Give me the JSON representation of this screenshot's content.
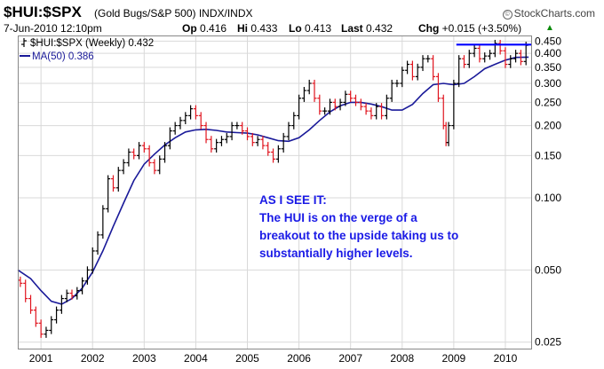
{
  "header": {
    "symbol": "$HUI:$SPX",
    "description": "(Gold Bugs/S&P 500) INDX/INDX",
    "brand": "StockCharts.com",
    "brand_icon": "copyright-icon",
    "date": "7-Jun-2010 12:10pm",
    "open_label": "Op",
    "open_value": "0.416",
    "high_label": "Hi",
    "high_value": "0.433",
    "low_label": "Lo",
    "low_value": "0.413",
    "last_label": "Last",
    "last_value": "0.432",
    "change_label": "Chg",
    "change_value": "+0.015 (+3.50%)",
    "change_icon": "up-arrow-icon"
  },
  "legend": {
    "series_label": "$HUI:$SPX (Weekly) 0.432",
    "series_icon": "ohlc-bar-icon",
    "ma_label": "MA(50) 0.386"
  },
  "annotation": {
    "lines": [
      "AS I SEE IT:",
      "The HUI is on the verge of a",
      "breakout to the upside taking us to",
      "substantially higher levels."
    ]
  },
  "colors": {
    "up_bar": "#000000",
    "down_bar": "#e0141e",
    "ma_line": "#1a1a99",
    "resistance_line": "#0000ff",
    "grid": "#d9d9d9",
    "annotation": "#1a1ae6"
  },
  "chart_data": {
    "type": "line",
    "scale": "log",
    "grid": true,
    "legend_position": "top-left",
    "y_ticks": [
      "0.025",
      "0.050",
      "0.100",
      "0.150",
      "0.200",
      "0.250",
      "0.300",
      "0.350",
      "0.400",
      "0.450"
    ],
    "y_tick_values": [
      0.025,
      0.05,
      0.1,
      0.15,
      0.2,
      0.25,
      0.3,
      0.35,
      0.4,
      0.45
    ],
    "ylim": [
      0.0235,
      0.475
    ],
    "x_ticks": [
      "2001",
      "2002",
      "2003",
      "2004",
      "2005",
      "2006",
      "2007",
      "2008",
      "2009",
      "2010"
    ],
    "x_tick_values": [
      2001,
      2002,
      2003,
      2004,
      2005,
      2006,
      2007,
      2008,
      2009,
      2010
    ],
    "xlim": [
      2000.55,
      2010.5
    ],
    "series": [
      {
        "name": "$HUI:$SPX",
        "style": "ohlc-bars",
        "x": [
          2000.6,
          2000.7,
          2000.8,
          2000.9,
          2001.0,
          2001.1,
          2001.2,
          2001.3,
          2001.4,
          2001.5,
          2001.6,
          2001.7,
          2001.8,
          2001.9,
          2002.0,
          2002.1,
          2002.2,
          2002.3,
          2002.4,
          2002.5,
          2002.6,
          2002.7,
          2002.8,
          2002.9,
          2003.0,
          2003.1,
          2003.2,
          2003.3,
          2003.4,
          2003.5,
          2003.6,
          2003.7,
          2003.8,
          2003.9,
          2004.0,
          2004.1,
          2004.2,
          2004.3,
          2004.4,
          2004.5,
          2004.6,
          2004.7,
          2004.8,
          2004.9,
          2005.0,
          2005.1,
          2005.2,
          2005.3,
          2005.4,
          2005.5,
          2005.6,
          2005.7,
          2005.8,
          2005.9,
          2006.0,
          2006.1,
          2006.2,
          2006.3,
          2006.4,
          2006.5,
          2006.6,
          2006.7,
          2006.8,
          2006.9,
          2007.0,
          2007.1,
          2007.2,
          2007.3,
          2007.4,
          2007.5,
          2007.6,
          2007.7,
          2007.8,
          2007.9,
          2008.0,
          2008.1,
          2008.2,
          2008.3,
          2008.4,
          2008.5,
          2008.6,
          2008.7,
          2008.8,
          2008.85,
          2008.9,
          2009.0,
          2009.1,
          2009.2,
          2009.3,
          2009.4,
          2009.5,
          2009.6,
          2009.7,
          2009.8,
          2009.9,
          2010.0,
          2010.1,
          2010.2,
          2010.3,
          2010.4
        ],
        "close": [
          0.044,
          0.038,
          0.034,
          0.03,
          0.027,
          0.028,
          0.031,
          0.034,
          0.038,
          0.04,
          0.039,
          0.041,
          0.045,
          0.05,
          0.06,
          0.07,
          0.09,
          0.12,
          0.11,
          0.13,
          0.14,
          0.155,
          0.15,
          0.165,
          0.16,
          0.14,
          0.13,
          0.145,
          0.165,
          0.19,
          0.2,
          0.21,
          0.22,
          0.235,
          0.22,
          0.2,
          0.175,
          0.16,
          0.17,
          0.175,
          0.18,
          0.2,
          0.2,
          0.19,
          0.18,
          0.17,
          0.175,
          0.165,
          0.155,
          0.145,
          0.16,
          0.18,
          0.2,
          0.22,
          0.26,
          0.28,
          0.3,
          0.26,
          0.23,
          0.23,
          0.25,
          0.24,
          0.25,
          0.27,
          0.26,
          0.25,
          0.24,
          0.23,
          0.22,
          0.24,
          0.22,
          0.26,
          0.3,
          0.3,
          0.34,
          0.36,
          0.32,
          0.35,
          0.38,
          0.38,
          0.32,
          0.26,
          0.2,
          0.17,
          0.2,
          0.3,
          0.38,
          0.36,
          0.4,
          0.42,
          0.38,
          0.39,
          0.4,
          0.44,
          0.41,
          0.36,
          0.38,
          0.4,
          0.37,
          0.432
        ]
      },
      {
        "name": "MA(50)",
        "style": "line",
        "x": [
          2000.55,
          2000.8,
          2001.0,
          2001.2,
          2001.4,
          2001.6,
          2001.8,
          2002.0,
          2002.2,
          2002.4,
          2002.6,
          2002.8,
          2003.0,
          2003.2,
          2003.4,
          2003.6,
          2003.8,
          2004.0,
          2004.2,
          2004.4,
          2004.6,
          2004.8,
          2005.0,
          2005.2,
          2005.4,
          2005.6,
          2005.8,
          2006.0,
          2006.2,
          2006.4,
          2006.6,
          2006.8,
          2007.0,
          2007.2,
          2007.4,
          2007.6,
          2007.8,
          2008.0,
          2008.2,
          2008.4,
          2008.6,
          2008.8,
          2009.0,
          2009.2,
          2009.4,
          2009.6,
          2009.8,
          2010.0,
          2010.2,
          2010.45
        ],
        "values": [
          0.05,
          0.046,
          0.041,
          0.037,
          0.036,
          0.038,
          0.042,
          0.049,
          0.06,
          0.076,
          0.095,
          0.118,
          0.138,
          0.152,
          0.166,
          0.178,
          0.188,
          0.192,
          0.193,
          0.191,
          0.188,
          0.187,
          0.186,
          0.183,
          0.178,
          0.173,
          0.172,
          0.178,
          0.192,
          0.21,
          0.228,
          0.242,
          0.25,
          0.25,
          0.246,
          0.24,
          0.232,
          0.232,
          0.245,
          0.272,
          0.296,
          0.3,
          0.296,
          0.3,
          0.32,
          0.345,
          0.36,
          0.375,
          0.385,
          0.386
        ]
      },
      {
        "name": "Resistance",
        "style": "hline",
        "x": [
          2009.05,
          2010.5
        ],
        "values": [
          0.435,
          0.435
        ]
      }
    ]
  }
}
